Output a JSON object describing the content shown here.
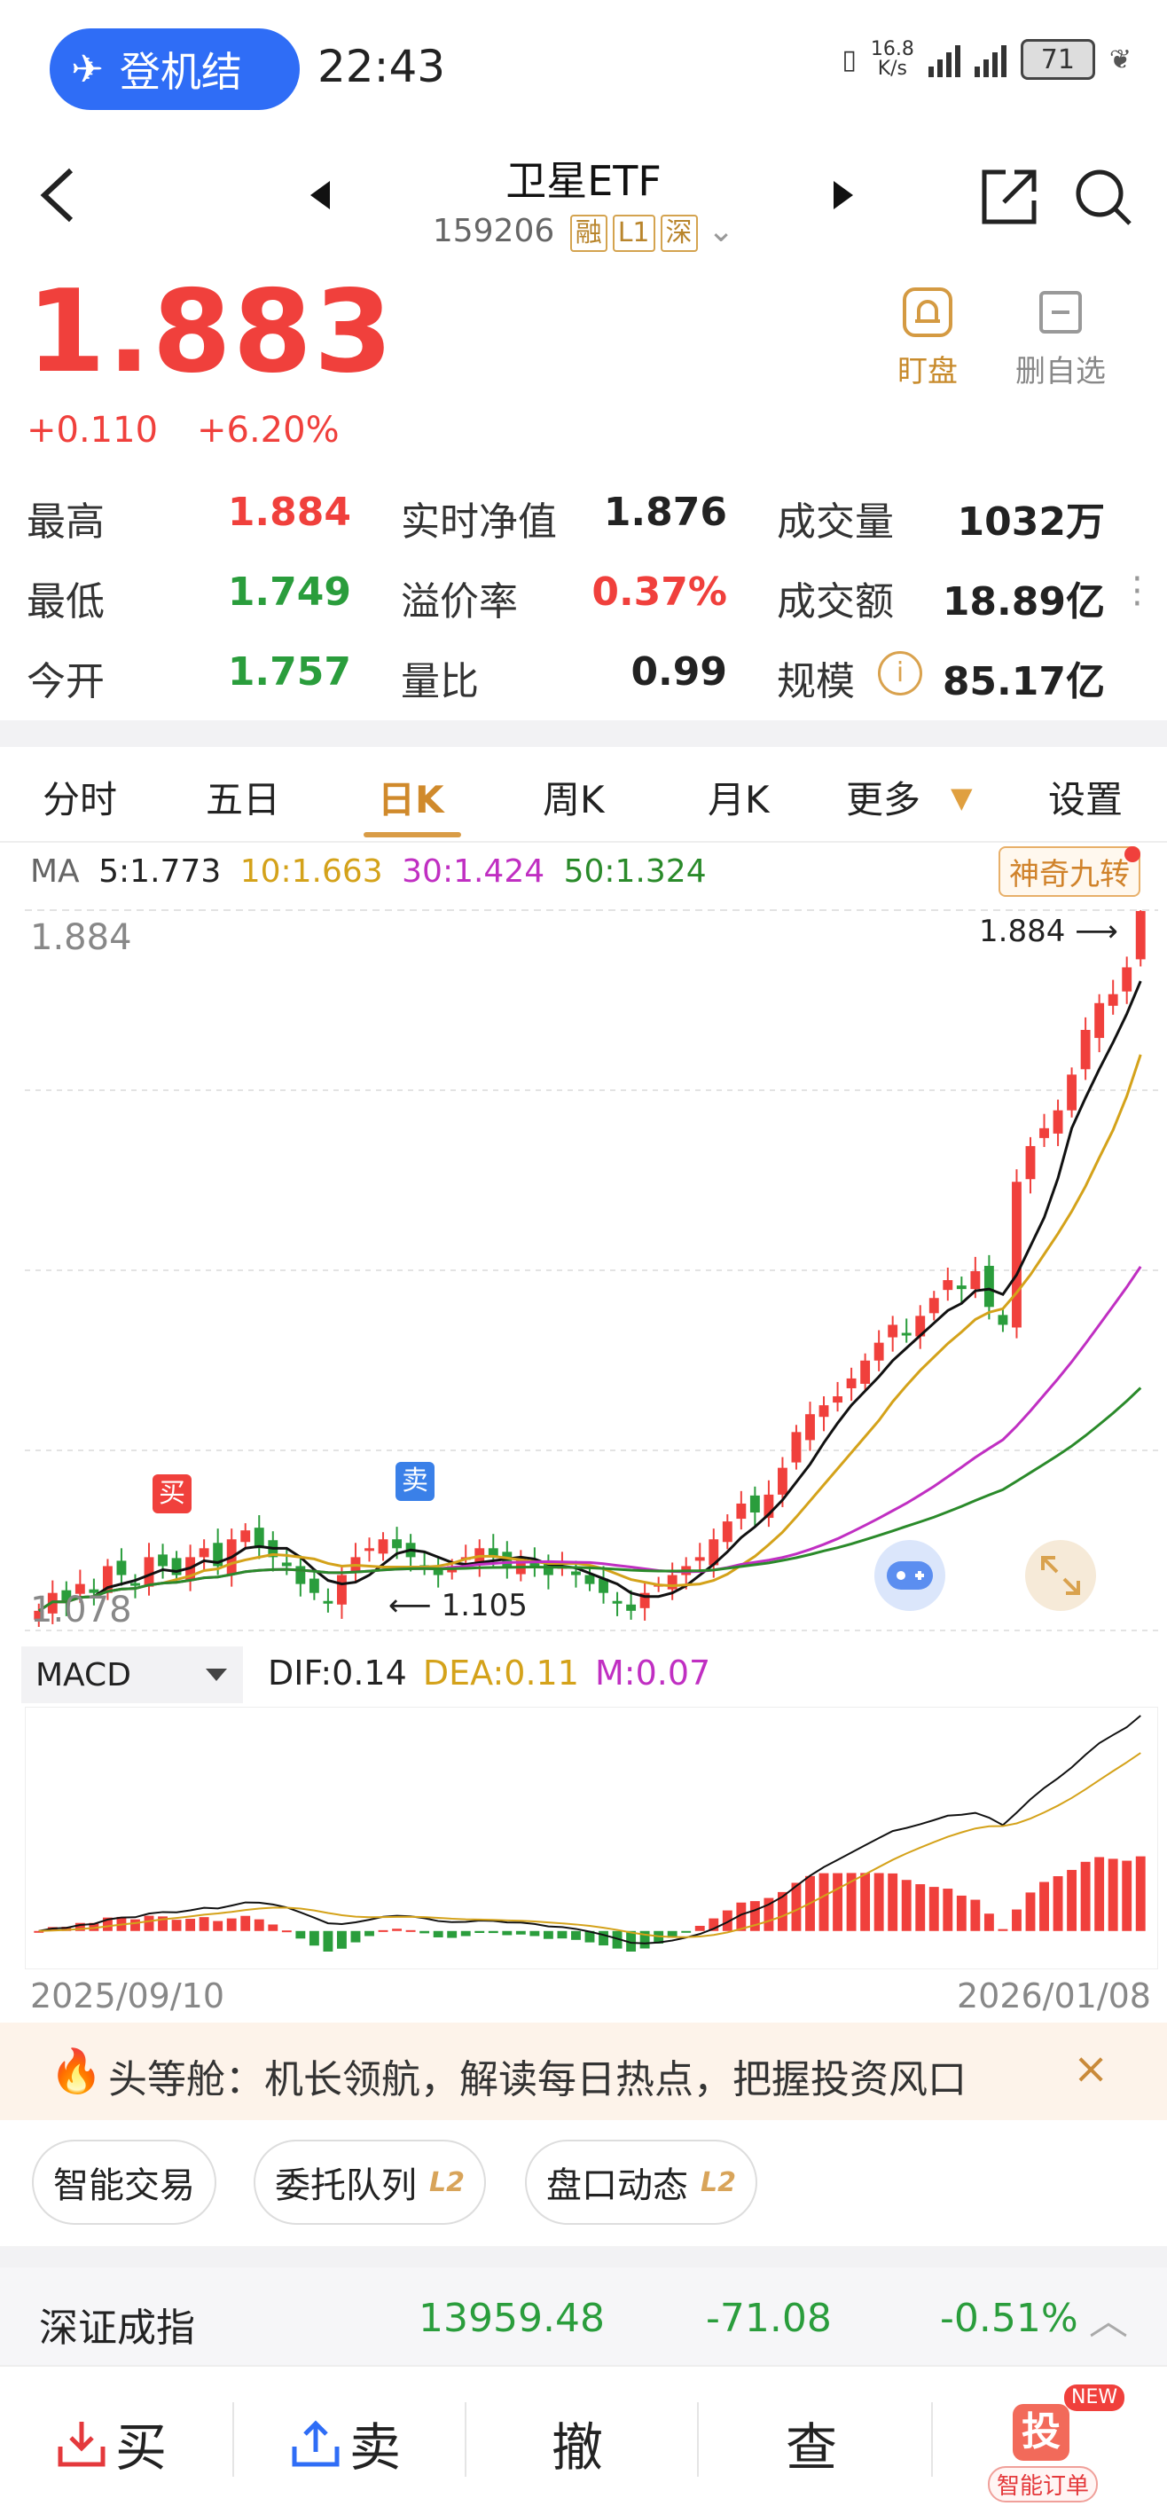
{
  "status_bar": {
    "pill_label": "登机结",
    "time": "22:43",
    "net_speed_top": "16.8",
    "net_speed_bottom": "K/s",
    "battery": "71"
  },
  "header": {
    "title": "卫星ETF",
    "code": "159206",
    "tags": [
      "融",
      "L1",
      "深"
    ]
  },
  "quote": {
    "price": "1.883",
    "change": "+0.110",
    "change_pct": "+6.20%",
    "actions": [
      {
        "label": "盯盘",
        "icon": "bell-icon"
      },
      {
        "label": "删自选",
        "icon": "minus-box-icon"
      }
    ]
  },
  "stats": [
    [
      {
        "label": "最高",
        "value": "1.884",
        "color": "red"
      },
      {
        "label": "实时净值",
        "value": "1.876",
        "color": "dark"
      },
      {
        "label": "成交量",
        "value": "1032万",
        "color": "dark"
      }
    ],
    [
      {
        "label": "最低",
        "value": "1.749",
        "color": "green"
      },
      {
        "label": "溢价率",
        "value": "0.37%",
        "color": "red"
      },
      {
        "label": "成交额",
        "value": "18.89亿",
        "color": "dark"
      }
    ],
    [
      {
        "label": "今开",
        "value": "1.757",
        "color": "green"
      },
      {
        "label": "量比",
        "value": "0.99",
        "color": "dark"
      },
      {
        "label": "规模",
        "value": "85.17亿",
        "color": "dark"
      }
    ]
  ],
  "tabs": [
    "分时",
    "五日",
    "日K",
    "周K",
    "月K",
    "更多",
    "设置"
  ],
  "active_tab": "日K",
  "ma": {
    "prefix": "MA",
    "ma5": "5:1.773",
    "ma10": "10:1.663",
    "ma30": "30:1.424",
    "ma50": "50:1.324",
    "badge": "神奇九转"
  },
  "chart_data": {
    "type": "candlestick",
    "y_high_label": "1.884",
    "y_low_label": "1.078",
    "ylim": [
      1.078,
      1.884
    ],
    "max_marker": "1.884",
    "min_marker": "1.105",
    "buy_marker": "买",
    "sell_marker": "卖",
    "date_start": "2025/09/10",
    "date_end": "2026/01/08",
    "closes": [
      1.1,
      1.12,
      1.11,
      1.13,
      1.12,
      1.15,
      1.14,
      1.13,
      1.16,
      1.15,
      1.14,
      1.16,
      1.17,
      1.15,
      1.18,
      1.19,
      1.17,
      1.16,
      1.15,
      1.13,
      1.12,
      1.11,
      1.14,
      1.16,
      1.17,
      1.18,
      1.17,
      1.16,
      1.15,
      1.14,
      1.15,
      1.16,
      1.17,
      1.16,
      1.15,
      1.16,
      1.15,
      1.14,
      1.15,
      1.14,
      1.13,
      1.12,
      1.11,
      1.1,
      1.12,
      1.13,
      1.14,
      1.15,
      1.16,
      1.18,
      1.2,
      1.22,
      1.21,
      1.23,
      1.26,
      1.3,
      1.32,
      1.33,
      1.34,
      1.36,
      1.38,
      1.4,
      1.42,
      1.41,
      1.43,
      1.45,
      1.47,
      1.46,
      1.48,
      1.44,
      1.42,
      1.58,
      1.62,
      1.64,
      1.66,
      1.7,
      1.75,
      1.78,
      1.79,
      1.82,
      1.883
    ]
  },
  "macd": {
    "selector": "MACD",
    "dif": "DIF:0.14",
    "dea": "DEA:0.11",
    "m": "M:0.07"
  },
  "banner": {
    "text": "头等舱：机长领航，解读每日热点，把握投资风口"
  },
  "chips": [
    {
      "label": "智能交易",
      "l2": ""
    },
    {
      "label": "委托队列",
      "l2": "L2"
    },
    {
      "label": "盘口动态",
      "l2": "L2"
    }
  ],
  "index_row": {
    "name": "深证成指",
    "value": "13959.48",
    "change": "-71.08",
    "pct": "-0.51%"
  },
  "bottom_bar": {
    "buy": "买",
    "sell": "卖",
    "cancel": "撤",
    "query": "查",
    "smart_badge": "NEW",
    "smart_char": "投",
    "smart_label": "智能订单"
  }
}
